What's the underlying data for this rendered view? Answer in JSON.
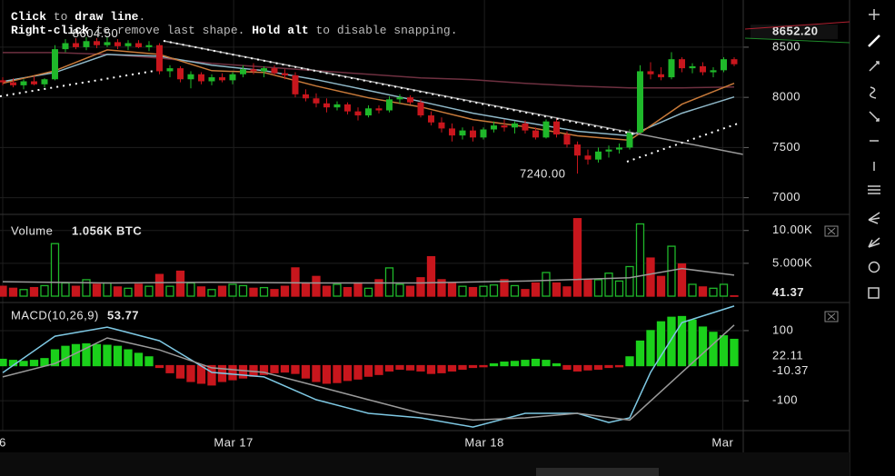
{
  "hint": {
    "lines": [
      [
        {
          "text": "Click",
          "bold": true
        },
        {
          "text": " to ",
          "bold": false
        },
        {
          "text": "draw line",
          "bold": true
        },
        {
          "text": ".",
          "bold": false
        }
      ],
      [
        {
          "text": "Right-click",
          "bold": true
        },
        {
          "text": " to remove last shape. ",
          "bold": false
        },
        {
          "text": "Hold alt",
          "bold": true
        },
        {
          "text": " to disable snapping.",
          "bold": false
        }
      ]
    ]
  },
  "chart_data": [
    {
      "type": "candlestick",
      "up_color": "#1fb82a",
      "down_color": "#c8161d",
      "x": [
        0,
        1,
        2,
        3,
        4,
        5,
        6,
        7,
        8,
        9,
        10,
        11,
        12,
        13,
        14,
        15,
        16,
        17,
        18,
        19,
        20,
        21,
        22,
        23,
        24,
        25,
        26,
        27,
        28,
        29,
        30,
        31,
        32,
        33,
        34,
        35,
        36,
        37,
        38,
        39,
        40,
        41,
        42,
        43,
        44,
        45,
        46,
        47,
        48,
        49,
        50,
        51,
        52,
        53,
        54,
        55,
        56,
        57,
        58,
        59,
        60,
        61,
        62,
        63,
        64,
        65,
        66,
        67,
        68,
        69,
        70
      ],
      "open": [
        8170,
        8150,
        8120,
        8160,
        8130,
        8180,
        8480,
        8540,
        8500,
        8560,
        8520,
        8550,
        8510,
        8540,
        8500,
        8520,
        8260,
        8290,
        8180,
        8230,
        8160,
        8200,
        8170,
        8230,
        8280,
        8260,
        8290,
        8240,
        8220,
        8030,
        7990,
        7940,
        7900,
        7930,
        7860,
        7820,
        7890,
        7870,
        7980,
        8000,
        7950,
        7820,
        7750,
        7690,
        7620,
        7670,
        7600,
        7680,
        7720,
        7700,
        7740,
        7670,
        7600,
        7760,
        7630,
        7530,
        7420,
        7380,
        7460,
        7480,
        7500,
        7650,
        8260,
        8230,
        8200,
        8380,
        8290,
        8310,
        8250,
        8270,
        8380
      ],
      "high": [
        8200,
        8190,
        8180,
        8210,
        8190,
        8520,
        8580,
        8590,
        8600,
        8590,
        8604.5,
        8580,
        8570,
        8570,
        8560,
        8540,
        8320,
        8310,
        8260,
        8250,
        8230,
        8240,
        8250,
        8320,
        8340,
        8310,
        8320,
        8280,
        8250,
        8080,
        8040,
        7990,
        7960,
        7950,
        7900,
        7920,
        7920,
        8010,
        8030,
        8020,
        7980,
        7860,
        7800,
        7740,
        7700,
        7710,
        7700,
        7760,
        7780,
        7760,
        7770,
        7700,
        7780,
        7790,
        7660,
        7560,
        7480,
        7500,
        7520,
        7540,
        7680,
        8320,
        8350,
        8300,
        8450,
        8400,
        8340,
        8350,
        8300,
        8400,
        8400
      ],
      "low": [
        8120,
        8100,
        8080,
        8120,
        8100,
        8170,
        8450,
        8480,
        8470,
        8490,
        8500,
        8480,
        8470,
        8490,
        8460,
        8230,
        8200,
        8150,
        8090,
        8130,
        8120,
        8150,
        8130,
        8200,
        8230,
        8200,
        8220,
        8180,
        8000,
        7960,
        7900,
        7850,
        7870,
        7830,
        7770,
        7800,
        7840,
        7850,
        7940,
        7930,
        7800,
        7720,
        7650,
        7560,
        7580,
        7560,
        7580,
        7650,
        7660,
        7640,
        7640,
        7580,
        7590,
        7600,
        7500,
        7240,
        7330,
        7350,
        7400,
        7440,
        7480,
        7640,
        8180,
        8170,
        8180,
        8250,
        8240,
        8220,
        8200,
        8250,
        8310
      ],
      "close": [
        8150,
        8120,
        8160,
        8130,
        8180,
        8480,
        8540,
        8500,
        8560,
        8520,
        8550,
        8510,
        8540,
        8500,
        8520,
        8260,
        8290,
        8180,
        8230,
        8160,
        8200,
        8170,
        8230,
        8280,
        8260,
        8290,
        8240,
        8220,
        8030,
        7990,
        7940,
        7900,
        7930,
        7860,
        7820,
        7890,
        7870,
        7980,
        8000,
        7950,
        7820,
        7750,
        7690,
        7620,
        7670,
        7600,
        7680,
        7720,
        7700,
        7740,
        7670,
        7600,
        7760,
        7630,
        7530,
        7420,
        7380,
        7460,
        7480,
        7500,
        7650,
        8260,
        8230,
        8200,
        8380,
        8290,
        8310,
        8250,
        8270,
        8380,
        8330
      ],
      "series": [
        {
          "color": "#6e3040",
          "x": [
            0,
            5,
            10,
            15,
            20,
            25,
            30,
            35,
            40,
            45,
            50,
            55,
            60,
            65,
            70
          ],
          "values": [
            8446,
            8446,
            8428,
            8392,
            8338,
            8302,
            8266,
            8230,
            8194,
            8176,
            8140,
            8113,
            8095,
            8095,
            8104
          ]
        },
        {
          "color": "#8fb8c8",
          "x": [
            0,
            5,
            10,
            15,
            20,
            25,
            30,
            35,
            40,
            45,
            50,
            55,
            60,
            65,
            70
          ],
          "values": [
            8158,
            8248,
            8428,
            8410,
            8320,
            8266,
            8176,
            8068,
            7959,
            7842,
            7752,
            7662,
            7617,
            7842,
            8004
          ]
        },
        {
          "color": "#c87a3a",
          "x": [
            0,
            5,
            10,
            15,
            20,
            25,
            30,
            35,
            40,
            45,
            50,
            55,
            60,
            65,
            70
          ],
          "values": [
            8140,
            8266,
            8473,
            8428,
            8266,
            8248,
            8113,
            7995,
            7905,
            7779,
            7707,
            7617,
            7572,
            7932,
            8140
          ]
        }
      ],
      "annotations": [
        {
          "x": 10,
          "value": 8604.5,
          "label": "8604.50"
        },
        {
          "x": 55,
          "value": 7240,
          "label": "7240.00"
        }
      ],
      "last_price": {
        "value": 8652.2,
        "label": "8652.20"
      },
      "ylim": [
        6870,
        8970
      ],
      "yticks": [
        8500,
        8000,
        7500,
        7000
      ],
      "grid": true
    },
    {
      "type": "bar",
      "title": "Volume",
      "readout": "1.056K BTC",
      "color_by": "price_direction",
      "x": [
        0,
        1,
        2,
        3,
        4,
        5,
        6,
        7,
        8,
        9,
        10,
        11,
        12,
        13,
        14,
        15,
        16,
        17,
        18,
        19,
        20,
        21,
        22,
        23,
        24,
        25,
        26,
        27,
        28,
        29,
        30,
        31,
        32,
        33,
        34,
        35,
        36,
        37,
        38,
        39,
        40,
        41,
        42,
        43,
        44,
        45,
        46,
        47,
        48,
        49,
        50,
        51,
        52,
        53,
        54,
        55,
        56,
        57,
        58,
        59,
        60,
        61,
        62,
        63,
        64,
        65,
        66,
        67,
        68,
        69,
        70
      ],
      "values": [
        1500,
        1200,
        1000,
        1300,
        1600,
        8000,
        2000,
        1500,
        2500,
        1800,
        2000,
        1400,
        1200,
        1800,
        1500,
        3300,
        1500,
        3800,
        2000,
        1400,
        1000,
        1500,
        1800,
        1600,
        1200,
        1300,
        1000,
        1500,
        4300,
        2000,
        3000,
        1500,
        1800,
        1300,
        2000,
        1200,
        2500,
        4300,
        1800,
        1500,
        2800,
        6000,
        2500,
        2000,
        1500,
        1300,
        1500,
        1700,
        2500,
        1600,
        1000,
        2000,
        3600,
        2000,
        1400,
        11800,
        2500,
        2500,
        3500,
        2300,
        4500,
        11000,
        5800,
        3000,
        7600,
        4900,
        1800,
        1400,
        1200,
        1800,
        41.37
      ],
      "series": [
        {
          "color": "#9a9a9a",
          "x": [
            0,
            10,
            20,
            30,
            40,
            50,
            60,
            65,
            70
          ],
          "values": [
            2200,
            2000,
            2100,
            2000,
            2000,
            2300,
            2800,
            4200,
            3200
          ]
        }
      ],
      "ylim": [
        0,
        11900
      ],
      "yticks": [
        {
          "value": 10000,
          "label": "10.00K"
        },
        {
          "value": 5000,
          "label": "5.000K"
        }
      ],
      "grid": true
    },
    {
      "type": "bar",
      "title": "MACD(10,26,9)",
      "readout": 53.77,
      "color_by": "sign",
      "up_color": "#1bd01b",
      "down_color": "#c8161d",
      "x": [
        0,
        1,
        2,
        3,
        4,
        5,
        6,
        7,
        8,
        9,
        10,
        11,
        12,
        13,
        14,
        15,
        16,
        17,
        18,
        19,
        20,
        21,
        22,
        23,
        24,
        25,
        26,
        27,
        28,
        29,
        30,
        31,
        32,
        33,
        34,
        35,
        36,
        37,
        38,
        39,
        40,
        41,
        42,
        43,
        44,
        45,
        46,
        47,
        48,
        49,
        50,
        51,
        52,
        53,
        54,
        55,
        56,
        57,
        58,
        59,
        60,
        61,
        62,
        63,
        64,
        65,
        66,
        67,
        68,
        69,
        70
      ],
      "values": [
        18,
        15,
        12,
        15,
        20,
        45,
        55,
        60,
        62,
        60,
        58,
        55,
        45,
        35,
        25,
        -5,
        -20,
        -35,
        -45,
        -50,
        -55,
        -45,
        -40,
        -35,
        -30,
        -25,
        -20,
        -18,
        -22,
        -35,
        -45,
        -50,
        -48,
        -42,
        -38,
        -30,
        -25,
        -15,
        -10,
        -12,
        -15,
        -22,
        -20,
        -15,
        -10,
        -5,
        -3,
        5,
        10,
        12,
        15,
        18,
        15,
        5,
        -10,
        -15,
        -12,
        -10,
        -5,
        -3,
        25,
        70,
        100,
        125,
        138,
        140,
        130,
        110,
        95,
        85,
        75
      ],
      "series": [
        {
          "color": "#7ec8e3",
          "x": [
            0,
            5,
            10,
            15,
            20,
            25,
            30,
            35,
            40,
            45,
            50,
            55,
            58,
            60,
            62,
            65,
            70
          ],
          "values": [
            -20,
            84,
            110,
            71,
            -19,
            -32,
            -97,
            -136,
            -149,
            -175,
            -136,
            -136,
            -162,
            -149,
            -19,
            123,
            170
          ]
        },
        {
          "color": "#9a9a9a",
          "x": [
            0,
            5,
            10,
            15,
            20,
            25,
            30,
            35,
            40,
            45,
            50,
            55,
            60,
            65,
            70
          ],
          "values": [
            -32,
            6,
            79,
            45,
            -6,
            -19,
            -58,
            -97,
            -136,
            -155,
            -149,
            -136,
            -155,
            -19,
            116
          ]
        }
      ],
      "current_values": [
        22.11,
        -10.37
      ],
      "ylim": [
        -180,
        175
      ],
      "yticks": [
        100,
        -100
      ],
      "grid": true,
      "xlim": [
        -0.26,
        70.87
      ],
      "xticks": [
        {
          "value": 0,
          "label": "6"
        },
        {
          "value": 22.1,
          "label": "Mar 17"
        },
        {
          "value": 46.1,
          "label": "Mar 18"
        },
        {
          "value": 68.9,
          "label": "Mar"
        }
      ]
    }
  ]
}
